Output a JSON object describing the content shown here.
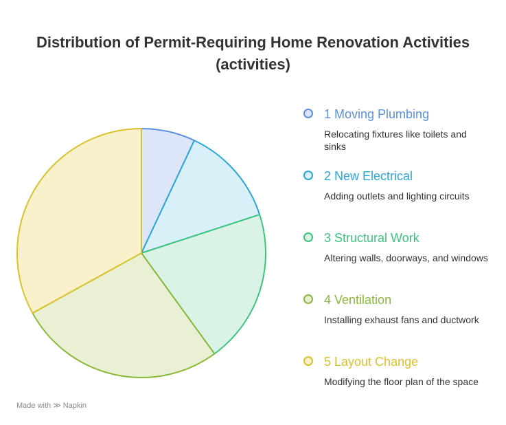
{
  "chart_data": {
    "type": "pie",
    "title": "Distribution of Permit-Requiring Home Renovation Activities (activities)",
    "categories": [
      "1 Moving Plumbing",
      "2 New Electrical",
      "3 Structural Work",
      "4 Ventilation",
      "5 Layout Change"
    ],
    "descriptions": [
      "Relocating fixtures like toilets and sinks",
      "Adding outlets and lighting circuits",
      "Altering walls, doorways, and windows",
      "Installing exhaust fans and ductwork",
      "Modifying the floor plan of the space"
    ],
    "values": [
      7,
      13,
      20,
      27,
      33
    ],
    "colors": [
      "#5b8fe0",
      "#2aa6d6",
      "#3cc47f",
      "#8ab83a",
      "#d9c22c"
    ],
    "fills": [
      "#dde6f8",
      "#d9f0f9",
      "#daf3e6",
      "#e9f0d3",
      "#f8f1cc"
    ]
  },
  "footer": {
    "made_with": "Made with",
    "brand": "Napkin"
  }
}
